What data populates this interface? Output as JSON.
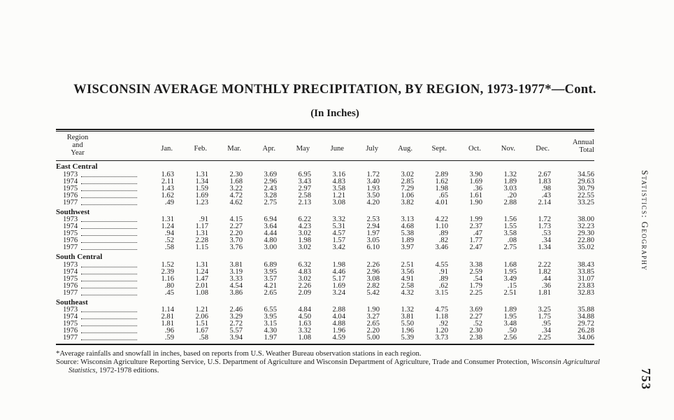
{
  "page": {
    "title": "WISCONSIN AVERAGE MONTHLY PRECIPITATION, BY REGION, 1973-1977*—Cont.",
    "subtitle": "(In Inches)",
    "running_head": "Statistics: Geography",
    "page_number": "753",
    "paper_color": "#fcfcfa",
    "text_color": "#1c1c1c"
  },
  "table": {
    "row_header": [
      "Region",
      "and",
      "Year"
    ],
    "columns": [
      "Jan.",
      "Feb.",
      "Mar.",
      "Apr.",
      "May",
      "June",
      "July",
      "Aug.",
      "Sept.",
      "Oct.",
      "Nov.",
      "Dec."
    ],
    "total_header": [
      "Annual",
      "Total"
    ],
    "regions": [
      {
        "name": "East Central",
        "rows": [
          {
            "year": "1973",
            "values": [
              "1.63",
              "1.31",
              "2.30",
              "3.69",
              "6.95",
              "3.16",
              "1.72",
              "3.02",
              "2.89",
              "3.90",
              "1.32",
              "2.67",
              "34.56"
            ]
          },
          {
            "year": "1974",
            "values": [
              "2.11",
              "1.34",
              "1.68",
              "2.96",
              "3.43",
              "4.83",
              "3.40",
              "2.85",
              "1.62",
              "1.69",
              "1.89",
              "1.83",
              "29.63"
            ]
          },
          {
            "year": "1975",
            "values": [
              "1.43",
              "1.59",
              "3.22",
              "2.43",
              "2.97",
              "3.58",
              "1.93",
              "7.29",
              "1.98",
              ".36",
              "3.03",
              ".98",
              "30.79"
            ]
          },
          {
            "year": "1976",
            "values": [
              "1.62",
              "1.69",
              "4.72",
              "3.28",
              "2.58",
              "1.21",
              "3.50",
              "1.06",
              ".65",
              "1.61",
              ".20",
              ".43",
              "22.55"
            ]
          },
          {
            "year": "1977",
            "values": [
              ".49",
              "1.23",
              "4.62",
              "2.75",
              "2.13",
              "3.08",
              "4.20",
              "3.82",
              "4.01",
              "1.90",
              "2.88",
              "2.14",
              "33.25"
            ]
          }
        ]
      },
      {
        "name": "Southwest",
        "rows": [
          {
            "year": "1973",
            "values": [
              "1.31",
              ".91",
              "4.15",
              "6.94",
              "6.22",
              "3.32",
              "2.53",
              "3.13",
              "4.22",
              "1.99",
              "1.56",
              "1.72",
              "38.00"
            ]
          },
          {
            "year": "1974",
            "values": [
              "1.24",
              "1.17",
              "2.27",
              "3.64",
              "4.23",
              "5.31",
              "2.94",
              "4.68",
              "1.10",
              "2.37",
              "1.55",
              "1.73",
              "32.23"
            ]
          },
          {
            "year": "1975",
            "values": [
              ".94",
              "1.31",
              "2.20",
              "4.44",
              "3.02",
              "4.57",
              "1.97",
              "5.38",
              ".89",
              ".47",
              "3.58",
              ".53",
              "29.30"
            ]
          },
          {
            "year": "1976",
            "values": [
              ".52",
              "2.28",
              "3.70",
              "4.80",
              "1.98",
              "1.57",
              "3.05",
              "1.89",
              ".82",
              "1.77",
              ".08",
              ".34",
              "22.80"
            ]
          },
          {
            "year": "1977",
            "values": [
              ".58",
              "1.15",
              "3.76",
              "3.00",
              "3.02",
              "3.42",
              "6.10",
              "3.97",
              "3.46",
              "2.47",
              "2.75",
              "1.34",
              "35.02"
            ]
          }
        ]
      },
      {
        "name": "South Central",
        "rows": [
          {
            "year": "1973",
            "values": [
              "1.52",
              "1.31",
              "3.81",
              "6.89",
              "6.32",
              "1.98",
              "2.26",
              "2.51",
              "4.55",
              "3.38",
              "1.68",
              "2.22",
              "38.43"
            ]
          },
          {
            "year": "1974",
            "values": [
              "2.39",
              "1.24",
              "3.19",
              "3.95",
              "4.83",
              "4.46",
              "2.96",
              "3.56",
              ".91",
              "2.59",
              "1.95",
              "1.82",
              "33.85"
            ]
          },
          {
            "year": "1975",
            "values": [
              "1.16",
              "1.47",
              "3.33",
              "3.57",
              "3.02",
              "5.17",
              "3.08",
              "4.91",
              ".89",
              ".54",
              "3.49",
              ".44",
              "31.07"
            ]
          },
          {
            "year": "1976",
            "values": [
              ".80",
              "2.01",
              "4.54",
              "4.21",
              "2.26",
              "1.69",
              "2.82",
              "2.58",
              ".62",
              "1.79",
              ".15",
              ".36",
              "23.83"
            ]
          },
          {
            "year": "1977",
            "values": [
              ".45",
              "1.08",
              "3.86",
              "2.65",
              "2.09",
              "3.24",
              "5.42",
              "4.32",
              "3.15",
              "2.25",
              "2.51",
              "1.81",
              "32.83"
            ]
          }
        ]
      },
      {
        "name": "Southeast",
        "rows": [
          {
            "year": "1973",
            "values": [
              "1.14",
              "1.21",
              "2.46",
              "6.55",
              "4.84",
              "2.88",
              "1.90",
              "1.32",
              "4.75",
              "3.69",
              "1.89",
              "3.25",
              "35.88"
            ]
          },
          {
            "year": "1974",
            "values": [
              "2.81",
              "2.06",
              "3.29",
              "3.95",
              "4.50",
              "4.04",
              "3.27",
              "3.81",
              "1.18",
              "2.27",
              "1.95",
              "1.75",
              "34.88"
            ]
          },
          {
            "year": "1975",
            "values": [
              "1.81",
              "1.51",
              "2.72",
              "3.15",
              "1.63",
              "4.88",
              "2.65",
              "5.50",
              ".92",
              ".52",
              "3.48",
              ".95",
              "29.72"
            ]
          },
          {
            "year": "1976",
            "values": [
              ".96",
              "1.67",
              "5.57",
              "4.30",
              "3.32",
              "1.96",
              "2.20",
              "1.96",
              "1.20",
              "2.30",
              ".50",
              ".34",
              "26.28"
            ]
          },
          {
            "year": "1977",
            "values": [
              ".59",
              ".58",
              "3.94",
              "1.97",
              "1.08",
              "4.59",
              "5.00",
              "5.39",
              "3.73",
              "2.38",
              "2.56",
              "2.25",
              "34.06"
            ]
          }
        ]
      }
    ]
  },
  "footnotes": {
    "note": "*Average rainfalls and snowfall in inches, based on reports from U.S. Weather Bureau observation stations in each region.",
    "source_prefix": "Source:  Wisconsin Agriculture Reporting Service, U.S. Department of Agriculture and Wisconsin Department of Agriculture, Trade and Consumer Protection, ",
    "source_italic": "Wisconsin Agricultural Statistics,",
    "source_suffix": " 1972-1978 editions."
  }
}
